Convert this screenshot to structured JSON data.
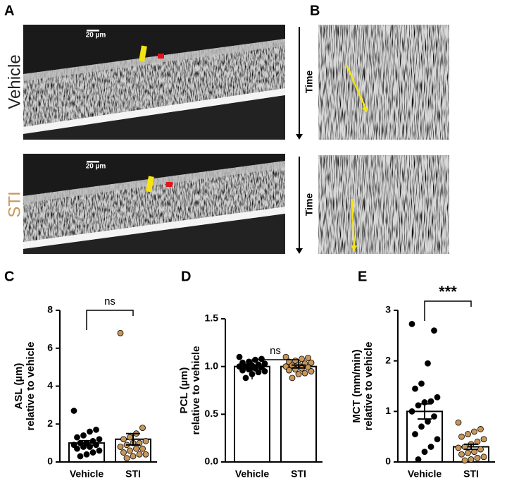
{
  "panel_labels": [
    "A",
    "B",
    "C",
    "D",
    "E"
  ],
  "images": {
    "rows": [
      "Vehicle",
      "STI"
    ],
    "row_colors": [
      "#222222",
      "#c8965a"
    ],
    "scale_bar": "20 µm",
    "time_label": "Time"
  },
  "chart_data": [
    {
      "type": "bar",
      "ylabel": [
        "ASL (µm)",
        "relative to vehicle"
      ],
      "categories": [
        "Vehicle",
        "STI"
      ],
      "values": [
        1.0,
        1.2
      ],
      "errors": [
        0.12,
        0.3
      ],
      "points": [
        [
          2.7,
          1.7,
          1.6,
          1.4,
          1.3,
          1.2,
          1.1,
          1.0,
          1.0,
          0.9,
          0.9,
          0.8,
          0.8,
          0.7,
          0.6,
          0.5,
          0.4,
          0.3
        ],
        [
          6.8,
          1.8,
          1.5,
          1.3,
          1.2,
          1.1,
          1.0,
          1.0,
          0.9,
          0.8,
          0.7,
          0.7,
          0.6,
          0.5,
          0.4,
          0.4,
          0.3,
          0.2
        ]
      ],
      "point_colors": [
        "#000000",
        "#c8965a"
      ],
      "significance": "ns",
      "ylim": [
        0,
        8
      ],
      "yticks": [
        0,
        2,
        4,
        6,
        8
      ]
    },
    {
      "type": "bar",
      "ylabel": [
        "PCL (µm)",
        "relative to vehicle"
      ],
      "categories": [
        "Vehicle",
        "STI"
      ],
      "values": [
        1.0,
        1.0
      ],
      "errors": [
        0.015,
        0.015
      ],
      "points": [
        [
          1.1,
          1.08,
          1.07,
          1.05,
          1.04,
          1.03,
          1.02,
          1.01,
          1.0,
          1.0,
          0.99,
          0.98,
          0.97,
          0.96,
          0.95,
          0.94,
          0.92,
          0.88
        ],
        [
          1.1,
          1.09,
          1.08,
          1.06,
          1.05,
          1.04,
          1.03,
          1.02,
          1.01,
          1.0,
          0.99,
          0.98,
          0.97,
          0.96,
          0.95,
          0.93,
          0.92,
          0.88
        ]
      ],
      "point_colors": [
        "#000000",
        "#c8965a"
      ],
      "significance": "ns",
      "ylim": [
        0,
        1.5
      ],
      "yticks": [
        {
          "value": 0,
          "label": "0.0"
        },
        0.5,
        {
          "value": 1,
          "label": "1.0"
        },
        1.5
      ]
    },
    {
      "type": "bar",
      "ylabel": [
        "MCT (mm/min)",
        "relative to vehicle"
      ],
      "categories": [
        "Vehicle",
        "STI"
      ],
      "values": [
        1.0,
        0.3
      ],
      "errors": [
        0.15,
        0.05
      ],
      "points": [
        [
          2.73,
          2.6,
          1.95,
          1.55,
          1.45,
          1.28,
          1.2,
          1.18,
          1.12,
          1.0,
          0.9,
          0.8,
          0.7,
          0.55,
          0.45,
          0.3,
          0.2,
          0.05
        ],
        [
          0.78,
          0.65,
          0.6,
          0.55,
          0.5,
          0.45,
          0.4,
          0.35,
          0.3,
          0.28,
          0.25,
          0.2,
          0.18,
          0.15,
          0.1,
          0.08,
          0.05,
          0.03
        ]
      ],
      "point_colors": [
        "#000000",
        "#c8965a"
      ],
      "significance": "***",
      "ylim": [
        0,
        3
      ],
      "yticks": [
        0,
        1,
        2,
        3
      ]
    }
  ]
}
